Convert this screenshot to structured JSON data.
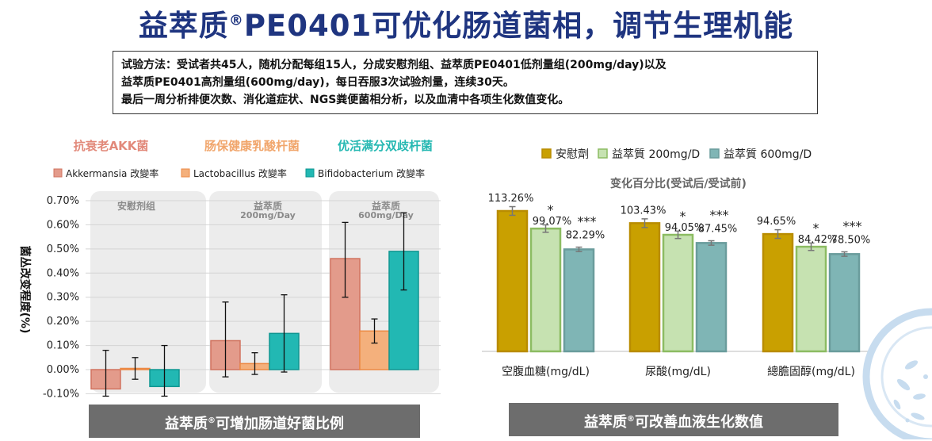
{
  "header": {
    "title_pre": "益萃质",
    "title_reg": "®",
    "title_post": "PE0401可优化肠道菌相，调节生理机能"
  },
  "method": {
    "line1": "试验方法：受试者共45人，随机分配每组15人，分成安慰剂组、益萃质PE0401低剂量组(200mg/day)以及",
    "line2": "益萃质PE0401高剂量组(600mg/day)，每日吞服3次试验剂量，连续30天。",
    "line3": "最后一周分析排便次数、消化道症状、NGS粪便菌相分析，以及血清中各项生化数值变化。"
  },
  "left_panel": {
    "headings": [
      {
        "text": "抗衰老AKK菌",
        "color": "#e2897a"
      },
      {
        "text": "肠保健康乳酸杆菌",
        "color": "#f1a66c"
      },
      {
        "text": "优活满分双歧杆菌",
        "color": "#25b8b2"
      }
    ],
    "caption_pre": "益萃质",
    "caption_reg": "®",
    "caption_post": "可增加肠道好菌比例"
  },
  "right_panel": {
    "caption_pre": "益萃质",
    "caption_reg": "®",
    "caption_post": "可改善血液生化数值"
  },
  "colors": {
    "akk": "#e39b8b",
    "lacto": "#f4b07c",
    "bifido": "#22b8b3",
    "placebo": "#c9a000",
    "dose200": "#c6e2b1",
    "dose600": "#7fb5b5",
    "panel_bg": "#ececec",
    "caption_bg": "#6d6d6d"
  },
  "chart_data": [
    {
      "type": "bar",
      "title": "",
      "ylabel": "菌丛改变程度(%)",
      "ylim": [
        -0.1,
        0.7
      ],
      "yticks": [
        "0.70%",
        "0.60%",
        "0.50%",
        "0.40%",
        "0.30%",
        "0.20%",
        "0.10%",
        "0.00%",
        "-0.10%"
      ],
      "ytick_values": [
        0.7,
        0.6,
        0.5,
        0.4,
        0.3,
        0.2,
        0.1,
        0.0,
        -0.1
      ],
      "groups": [
        {
          "label": "安慰剂组",
          "sublabel": ""
        },
        {
          "label": "益萃质",
          "sublabel": "200mg/Day"
        },
        {
          "label": "益萃质",
          "sublabel": "600mg/Day"
        }
      ],
      "legend_position": "top",
      "series": [
        {
          "name": "Akkermansia 改變率",
          "values": [
            -0.08,
            0.12,
            0.46
          ],
          "err_low": [
            -0.11,
            -0.03,
            0.3
          ],
          "err_high": [
            0.08,
            0.28,
            0.61
          ]
        },
        {
          "name": "Lactobacillus 改變率",
          "values": [
            0.005,
            0.025,
            0.16
          ],
          "err_low": [
            -0.04,
            -0.02,
            0.11
          ],
          "err_high": [
            0.05,
            0.07,
            0.21
          ]
        },
        {
          "name": "Bifidobacterium 改變率",
          "values": [
            -0.07,
            0.15,
            0.49
          ],
          "err_low": [
            -0.11,
            -0.01,
            0.33
          ],
          "err_high": [
            0.1,
            0.31,
            0.65
          ]
        }
      ]
    },
    {
      "type": "bar",
      "title": "变化百分比(受试后/受试前)",
      "legend_position": "top",
      "categories": [
        "空腹血糖(mg/dL)",
        "尿酸(mg/dL)",
        "總膽固醇(mg/dL)"
      ],
      "ylim": [
        0,
        130
      ],
      "series": [
        {
          "name": "安慰劑",
          "values": [
            113.26,
            103.43,
            94.65
          ],
          "labels": [
            "113.26%",
            "103.43%",
            "94.65%"
          ],
          "sig": [
            "",
            "",
            ""
          ],
          "err": [
            3.5,
            3.5,
            3.5
          ]
        },
        {
          "name": "益萃質 200mg/D",
          "values": [
            99.07,
            94.05,
            84.42
          ],
          "labels": [
            "99.07%",
            "94.05%",
            "84.42%"
          ],
          "sig": [
            "*",
            "*",
            "*"
          ],
          "err": [
            3.0,
            3.0,
            3.0
          ]
        },
        {
          "name": "益萃質 600mg/D",
          "values": [
            82.29,
            87.45,
            78.5
          ],
          "labels": [
            "82.29%",
            "87.45%",
            "78.50%"
          ],
          "sig": [
            "***",
            "***",
            "***"
          ],
          "err": [
            1.8,
            1.8,
            1.8
          ]
        }
      ]
    }
  ]
}
